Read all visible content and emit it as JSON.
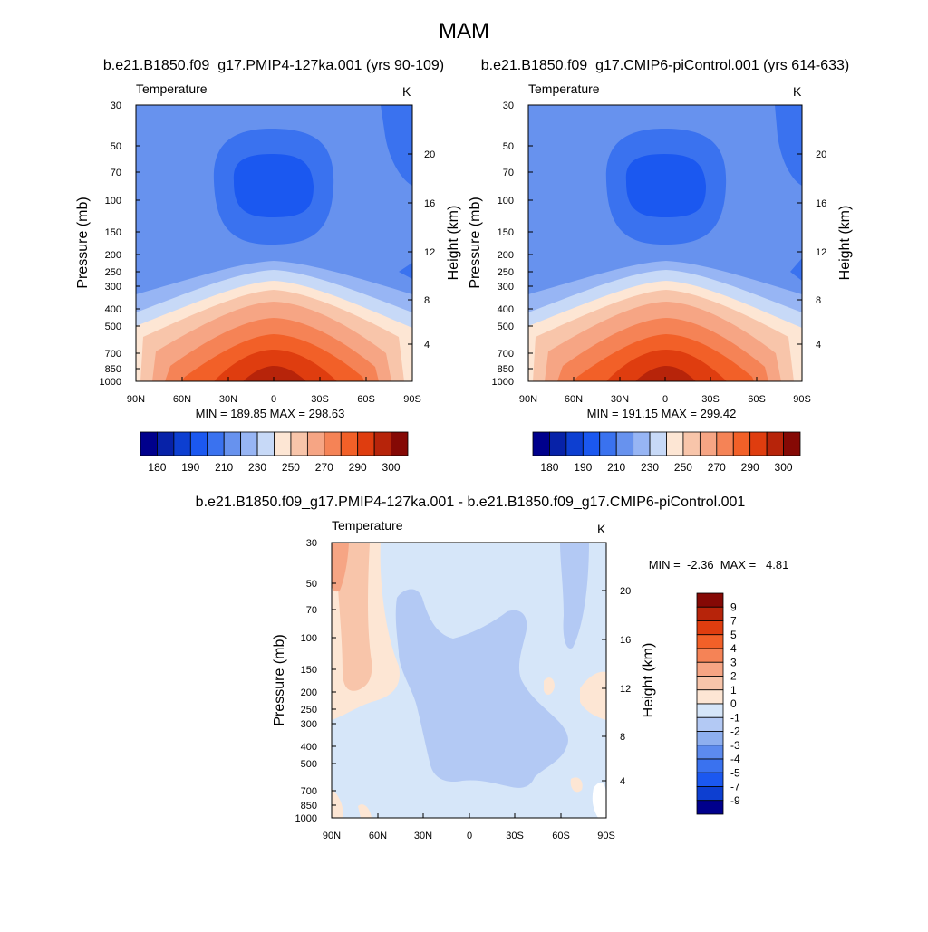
{
  "page": {
    "title": "MAM",
    "panel1_title": "b.e21.B1850.f09_g17.PMIP4-127ka.001 (yrs 90-109)",
    "panel2_title": "b.e21.B1850.f09_g17.CMIP6-piControl.001 (yrs 614-633)",
    "panel3_title": "b.e21.B1850.f09_g17.PMIP4-127ka.001 - b.e21.B1850.f09_g17.CMIP6-piControl.001"
  },
  "chart_data": [
    {
      "type": "contour",
      "panel_label": "Temperature",
      "units": "K",
      "ylabel": "Pressure (mb)",
      "ylabel_right": "Height (km)",
      "x_ticks": [
        "90N",
        "60N",
        "30N",
        "0",
        "30S",
        "60S",
        "90S"
      ],
      "y_ticks": [
        "30",
        "50",
        "70",
        "100",
        "150",
        "200",
        "250",
        "300",
        "400",
        "500",
        "700",
        "850",
        "1000"
      ],
      "y_ticks_right": [
        "20",
        "16",
        "12",
        "8",
        "4"
      ],
      "stats": "MIN = 189.85  MAX = 298.63",
      "min": 189.85,
      "max": 298.63,
      "colorbar_labels": [
        "180",
        "190",
        "210",
        "230",
        "250",
        "270",
        "290",
        "300"
      ],
      "colorbar_colors": [
        "#00008c",
        "#0722a8",
        "#0d3fd1",
        "#1b58f0",
        "#3a72ef",
        "#6792ee",
        "#97b5f4",
        "#c7d9f7",
        "#fde6d4",
        "#f8c5aa",
        "#f6a584",
        "#f58356",
        "#f26028",
        "#df3d0f",
        "#b7240a",
        "#850905"
      ]
    },
    {
      "type": "contour",
      "panel_label": "Temperature",
      "units": "K",
      "ylabel": "Pressure (mb)",
      "ylabel_right": "Height (km)",
      "x_ticks": [
        "90N",
        "60N",
        "30N",
        "0",
        "30S",
        "60S",
        "90S"
      ],
      "y_ticks": [
        "30",
        "50",
        "70",
        "100",
        "150",
        "200",
        "250",
        "300",
        "400",
        "500",
        "700",
        "850",
        "1000"
      ],
      "y_ticks_right": [
        "20",
        "16",
        "12",
        "8",
        "4"
      ],
      "stats": "MIN = 191.15  MAX = 299.42",
      "min": 191.15,
      "max": 299.42,
      "colorbar_labels": [
        "180",
        "190",
        "210",
        "230",
        "250",
        "270",
        "290",
        "300"
      ],
      "colorbar_colors": [
        "#00008c",
        "#0722a8",
        "#0d3fd1",
        "#1b58f0",
        "#3a72ef",
        "#6792ee",
        "#97b5f4",
        "#c7d9f7",
        "#fde6d4",
        "#f8c5aa",
        "#f6a584",
        "#f58356",
        "#f26028",
        "#df3d0f",
        "#b7240a",
        "#850905"
      ]
    },
    {
      "type": "contour",
      "panel_label": "Temperature",
      "units": "K",
      "ylabel": "Pressure (mb)",
      "ylabel_right": "Height (km)",
      "x_ticks": [
        "90N",
        "60N",
        "30N",
        "0",
        "30S",
        "60S",
        "90S"
      ],
      "y_ticks": [
        "30",
        "50",
        "70",
        "100",
        "150",
        "200",
        "250",
        "300",
        "400",
        "500",
        "700",
        "850",
        "1000"
      ],
      "y_ticks_right": [
        "20",
        "16",
        "12",
        "8",
        "4"
      ],
      "stats": "MIN =  -2.36  MAX =   4.81",
      "min": -2.36,
      "max": 4.81,
      "colorbar_labels": [
        "9",
        "7",
        "5",
        "4",
        "3",
        "2",
        "1",
        "0",
        "-1",
        "-2",
        "-3",
        "-4",
        "-5",
        "-7",
        "-9"
      ],
      "colorbar_colors": [
        "#850905",
        "#b7240a",
        "#df3d0f",
        "#f26028",
        "#f58356",
        "#f6a584",
        "#f8c5aa",
        "#fde6d4",
        "#d6e6f9",
        "#b3c9f4",
        "#8eafef",
        "#5c8aee",
        "#3a72ef",
        "#1b58f0",
        "#0d3fd1",
        "#00008c"
      ]
    }
  ]
}
